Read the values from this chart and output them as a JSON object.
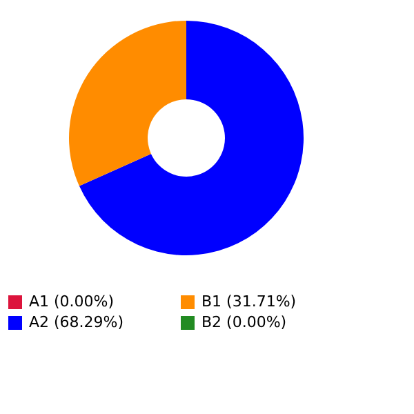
{
  "chart_data": {
    "type": "donut",
    "categories": [
      "A1 (0.00%)",
      "A2 (68.29%)",
      "B1 (31.71%)",
      "B2 (0.00%)"
    ],
    "values": [
      0,
      68.29,
      31.71,
      0
    ],
    "colors": [
      "#dc143c",
      "#0000ff",
      "#ff8c00",
      "#228b22"
    ],
    "legend": "bottom"
  }
}
